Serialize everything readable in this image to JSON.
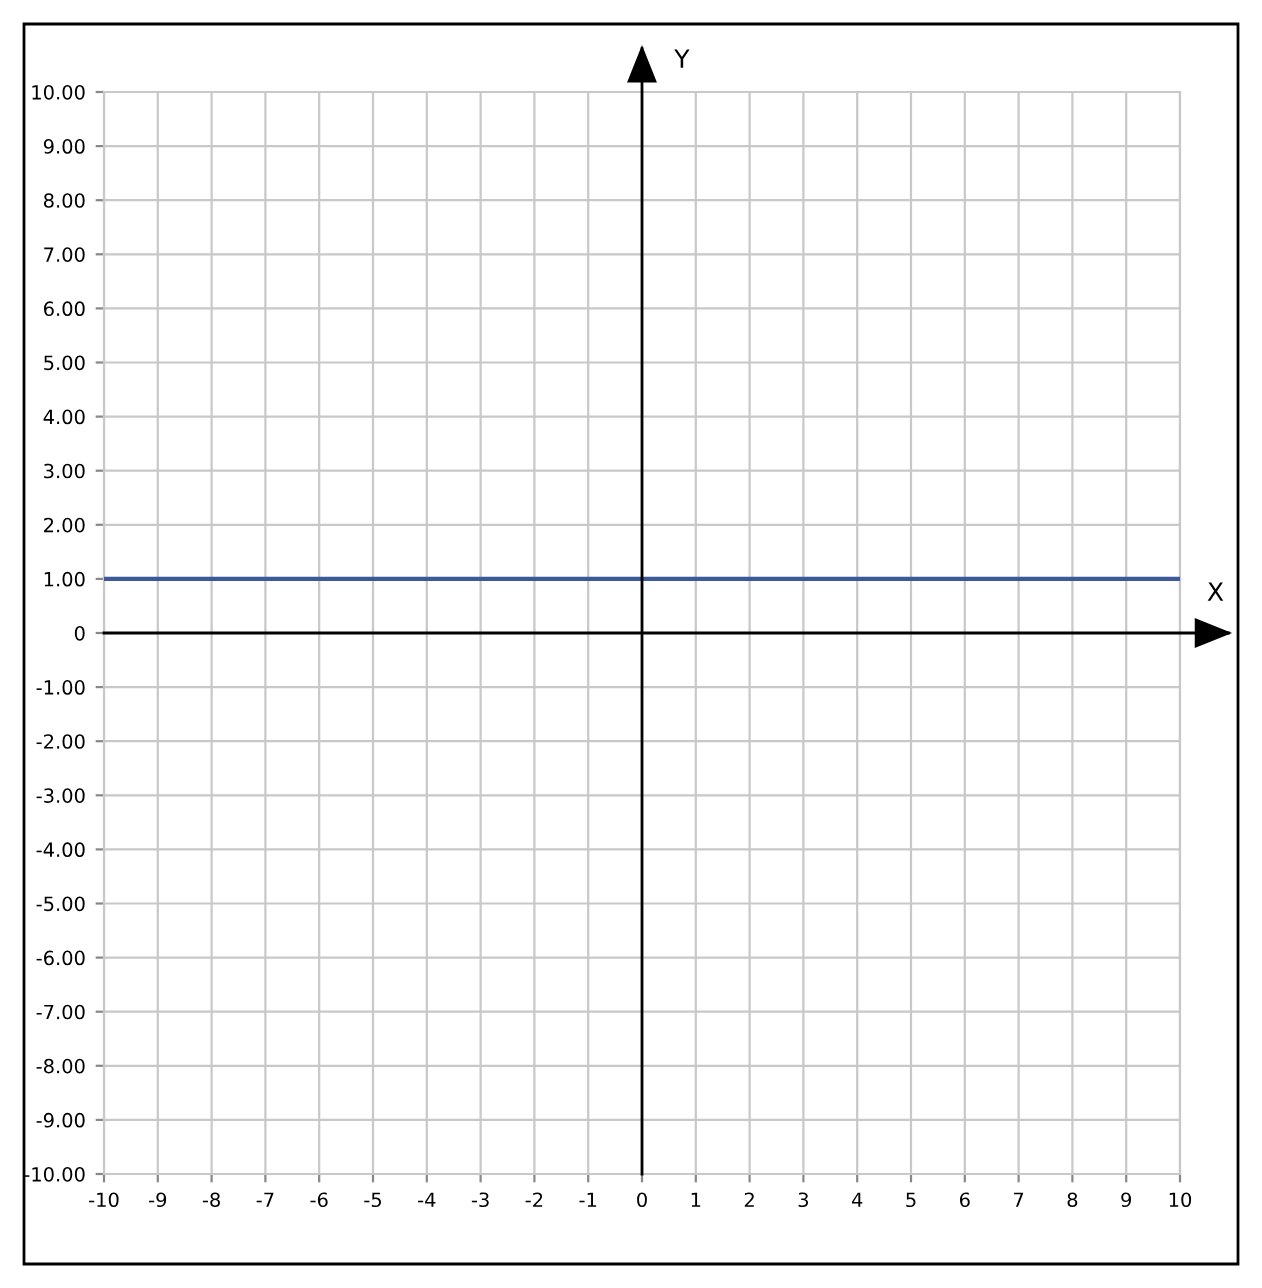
{
  "chart_data": {
    "type": "line",
    "xlabel": "X",
    "ylabel": "Y",
    "x": [
      -10,
      10
    ],
    "series": [
      {
        "color": "#3c5a99",
        "values": [
          1,
          1
        ]
      }
    ],
    "xlim": [
      -10,
      10
    ],
    "ylim": [
      -10,
      10
    ],
    "xticks": [
      -10,
      -9,
      -8,
      -7,
      -6,
      -5,
      -4,
      -3,
      -2,
      -1,
      0,
      1,
      2,
      3,
      4,
      5,
      6,
      7,
      8,
      9,
      10
    ],
    "yticks": [
      {
        "value": -10,
        "label": "-10.00"
      },
      {
        "value": -9,
        "label": "-9.00"
      },
      {
        "value": -8,
        "label": "-8.00"
      },
      {
        "value": -7,
        "label": "-7.00"
      },
      {
        "value": -6,
        "label": "-6.00"
      },
      {
        "value": -5,
        "label": "-5.00"
      },
      {
        "value": -4,
        "label": "-4.00"
      },
      {
        "value": -3,
        "label": "-3.00"
      },
      {
        "value": -2,
        "label": "-2.00"
      },
      {
        "value": -1,
        "label": "-1.00"
      },
      0,
      {
        "value": 1,
        "label": "1.00"
      },
      {
        "value": 2,
        "label": "2.00"
      },
      {
        "value": 3,
        "label": "3.00"
      },
      {
        "value": 4,
        "label": "4.00"
      },
      {
        "value": 5,
        "label": "5.00"
      },
      {
        "value": 6,
        "label": "6.00"
      },
      {
        "value": 7,
        "label": "7.00"
      },
      {
        "value": 8,
        "label": "8.00"
      },
      {
        "value": 9,
        "label": "9.00"
      },
      {
        "value": 10,
        "label": "10.00"
      }
    ],
    "grid": true,
    "legend": false,
    "marker": "none",
    "line_style": "solid"
  }
}
